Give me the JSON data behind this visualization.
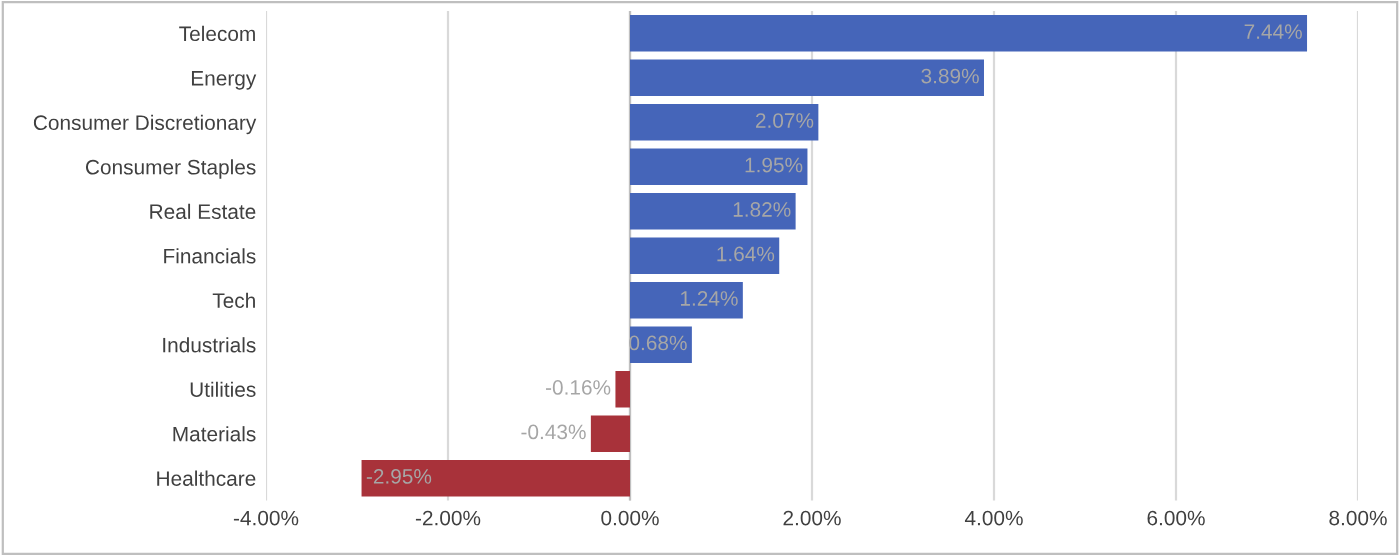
{
  "chart_data": {
    "type": "bar",
    "orientation": "horizontal",
    "categories": [
      "Telecom",
      "Energy",
      "Consumer Discretionary",
      "Consumer Staples",
      "Real Estate",
      "Financials",
      "Tech",
      "Industrials",
      "Utilities",
      "Materials",
      "Healthcare"
    ],
    "values": [
      7.44,
      3.89,
      2.07,
      1.95,
      1.82,
      1.64,
      1.24,
      0.68,
      -0.16,
      -0.43,
      -2.95
    ],
    "colors": [
      "#4565b9",
      "#4565b9",
      "#4565b9",
      "#4565b9",
      "#4565b9",
      "#4565b9",
      "#4565b9",
      "#4565b9",
      "#a8323a",
      "#a8323a",
      "#a8323a"
    ],
    "value_labels": [
      "7.44%",
      "3.89%",
      "2.07%",
      "1.95%",
      "1.82%",
      "1.64%",
      "1.24%",
      "0.68%",
      "-0.16%",
      "-0.43%",
      "-2.95%"
    ],
    "xlim": [
      -4,
      8
    ],
    "xticks": [
      {
        "value": -4,
        "label": "-4.00%"
      },
      {
        "value": -2,
        "label": "-2.00%"
      },
      {
        "value": 0,
        "label": "0.00%"
      },
      {
        "value": 2,
        "label": "2.00%"
      },
      {
        "value": 4,
        "label": "4.00%"
      },
      {
        "value": 6,
        "label": "6.00%"
      },
      {
        "value": 8,
        "label": "8.00%"
      }
    ],
    "grid": "x"
  }
}
